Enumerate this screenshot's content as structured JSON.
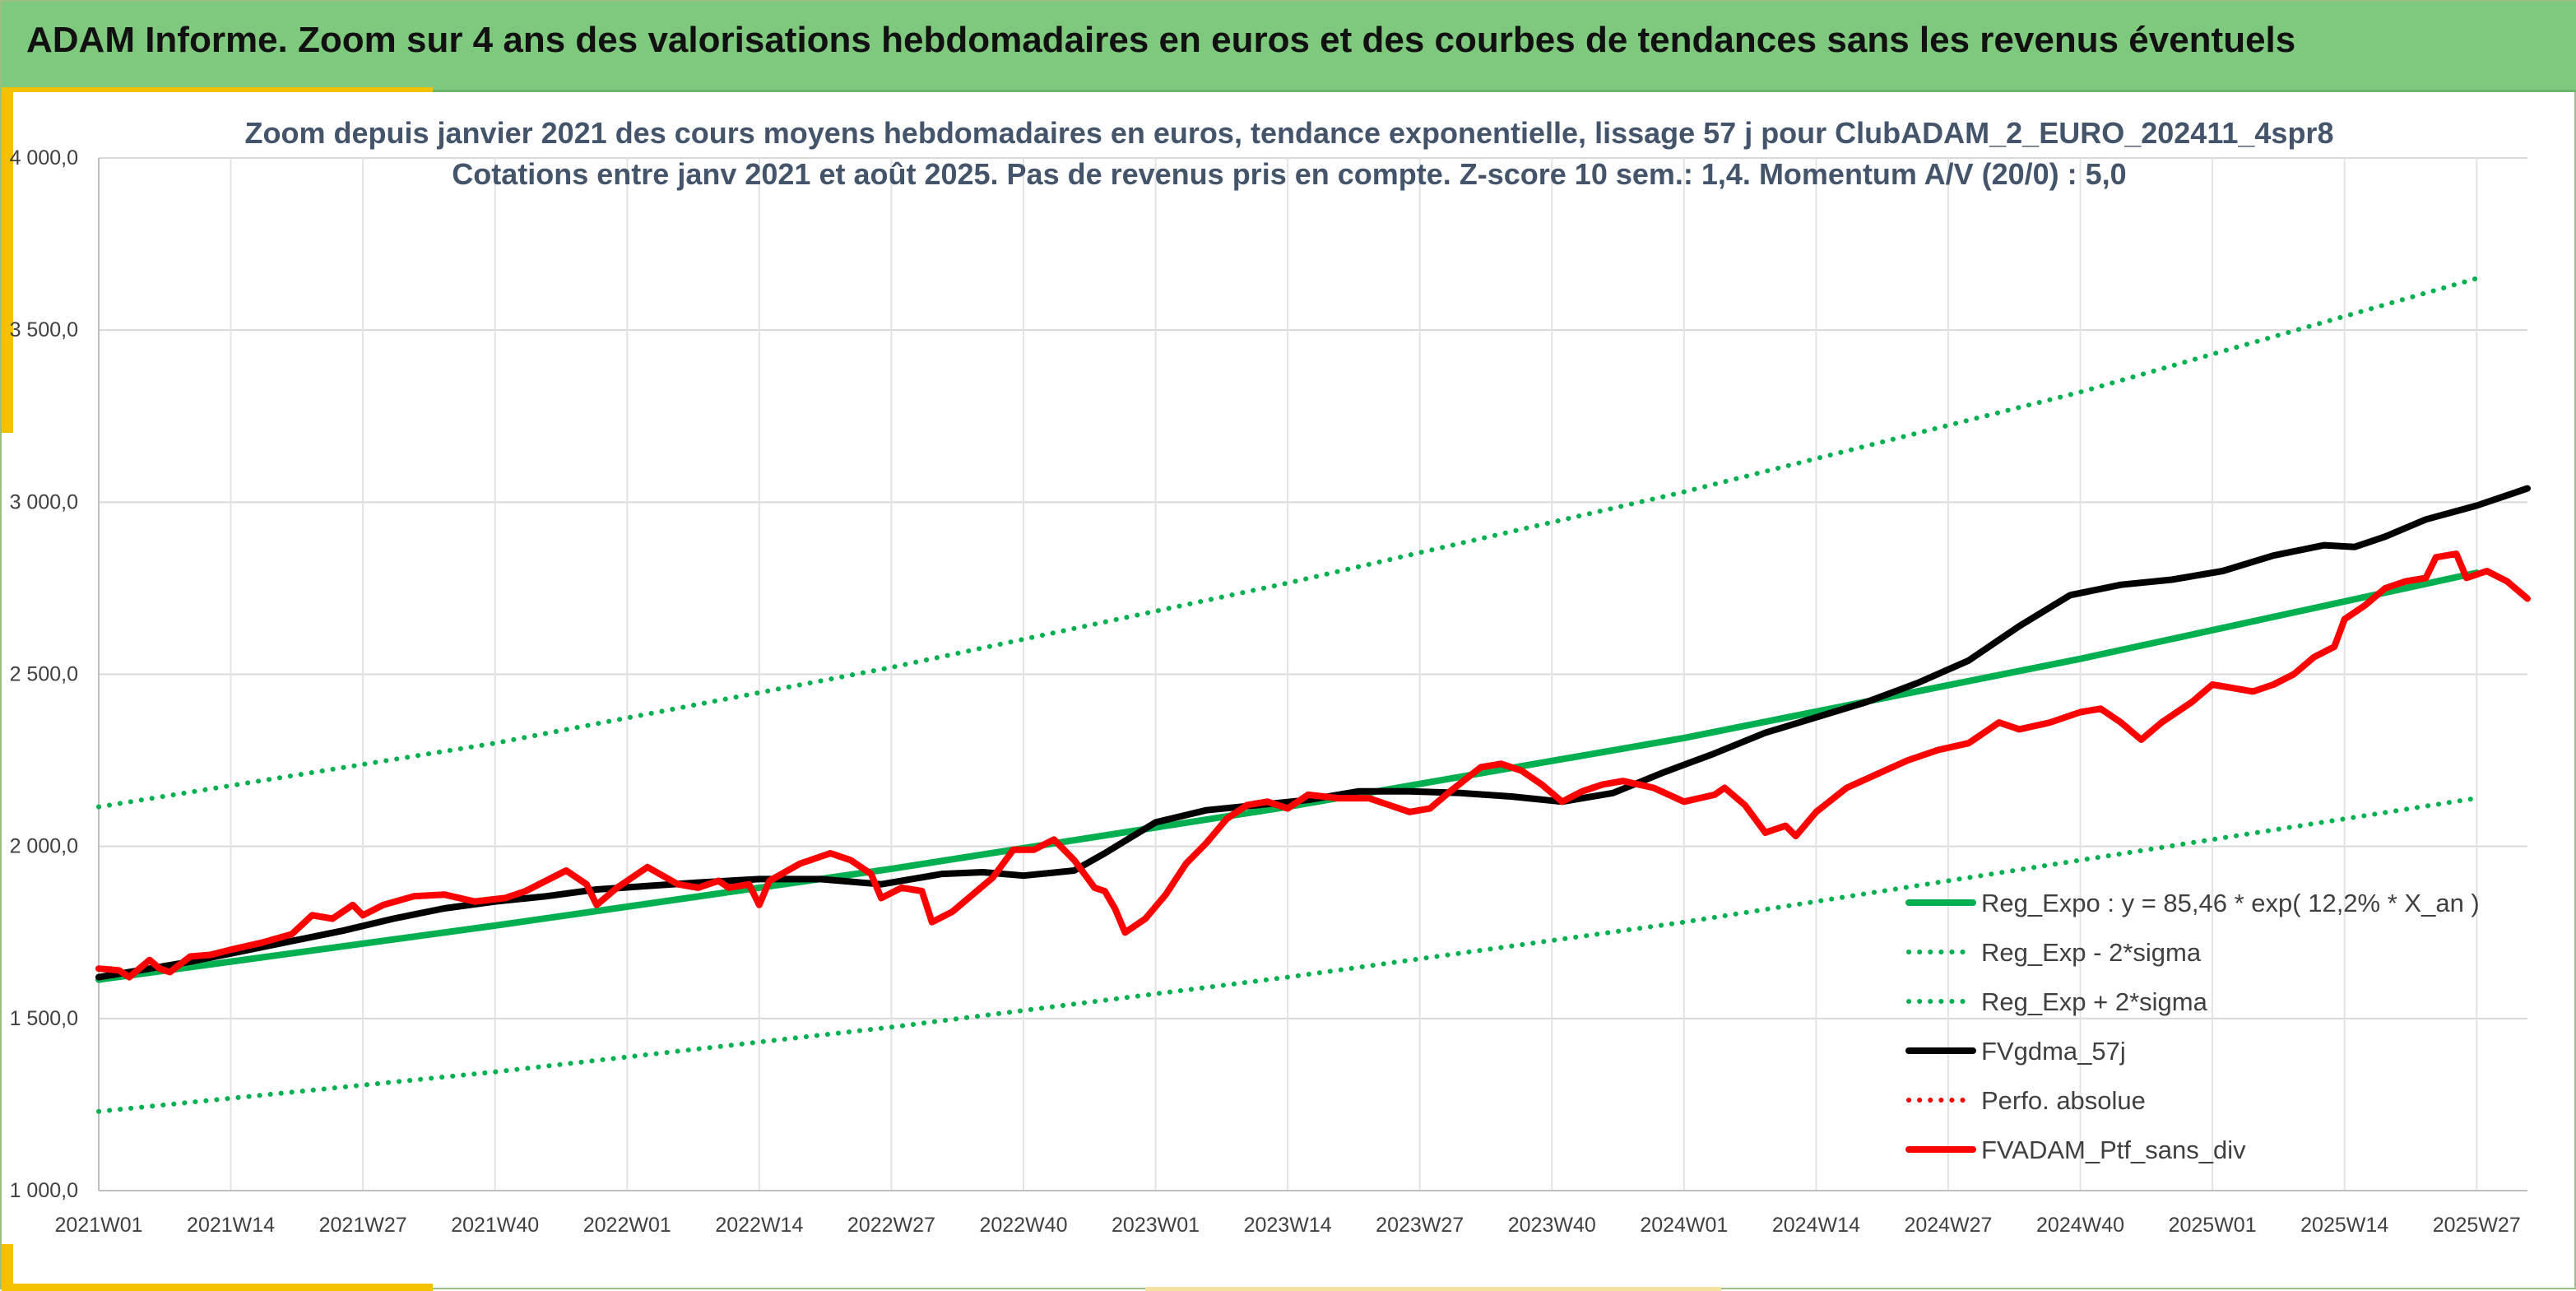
{
  "banner": {
    "title": "ADAM Informe. Zoom sur 4 ans des valorisations hebdomadaires en euros et des courbes de tendances sans les revenus éventuels"
  },
  "colors": {
    "banner_bg": "#7fc97f",
    "accent": "#f2c200",
    "reg_expo": "#00b050",
    "fvgdma": "#000000",
    "fvadam": "#ff0000",
    "title_text": "#44546a"
  },
  "chart_data": {
    "type": "line",
    "title_lines": [
      "Zoom depuis janvier 2021 des cours moyens hebdomadaires en euros, tendance exponentielle, lissage 57 j pour ClubADAM_2_EURO_202411_4spr8",
      "Cotations entre janv 2021 et août 2025. Pas de revenus pris en compte. Z-score 10 sem.: 1,4. Momentum A/V (20/0) : 5,0"
    ],
    "xlabel": "",
    "ylabel": "",
    "ylim": [
      1000,
      4000
    ],
    "x_range_weeks": [
      1,
      240
    ],
    "y_ticks": [
      {
        "value": 1000,
        "label": "1 000,0"
      },
      {
        "value": 1500,
        "label": "1 500,0"
      },
      {
        "value": 2000,
        "label": "2 000,0"
      },
      {
        "value": 2500,
        "label": "2 500,0"
      },
      {
        "value": 3000,
        "label": "3 000,0"
      },
      {
        "value": 3500,
        "label": "3 500,0"
      },
      {
        "value": 4000,
        "label": "4 000,0"
      }
    ],
    "x_ticks": [
      {
        "week": 1,
        "label": "2021W01"
      },
      {
        "week": 14,
        "label": "2021W14"
      },
      {
        "week": 27,
        "label": "2021W27"
      },
      {
        "week": 40,
        "label": "2021W40"
      },
      {
        "week": 53,
        "label": "2022W01"
      },
      {
        "week": 66,
        "label": "2022W14"
      },
      {
        "week": 79,
        "label": "2022W27"
      },
      {
        "week": 92,
        "label": "2022W40"
      },
      {
        "week": 105,
        "label": "2023W01"
      },
      {
        "week": 118,
        "label": "2023W14"
      },
      {
        "week": 131,
        "label": "2023W27"
      },
      {
        "week": 144,
        "label": "2023W40"
      },
      {
        "week": 157,
        "label": "2024W01"
      },
      {
        "week": 170,
        "label": "2024W14"
      },
      {
        "week": 183,
        "label": "2024W27"
      },
      {
        "week": 196,
        "label": "2024W40"
      },
      {
        "week": 209,
        "label": "2025W01"
      },
      {
        "week": 222,
        "label": "2025W14"
      },
      {
        "week": 235,
        "label": "2025W27"
      }
    ],
    "grid": {
      "horizontal": true,
      "vertical": true
    },
    "legend_position": "bottom-right",
    "series": [
      {
        "name": "Reg_Expo : y = 85,46 * exp( 12,2% *  X_an )",
        "color": "#00b050",
        "style": "solid",
        "points": [
          [
            1,
            1613
          ],
          [
            40,
            1770
          ],
          [
            79,
            1935
          ],
          [
            118,
            2115
          ],
          [
            157,
            2315
          ],
          [
            196,
            2545
          ],
          [
            235,
            2795
          ],
          [
            244,
            2840
          ]
        ]
      },
      {
        "name": "Reg_Exp - 2*sigma",
        "color": "#00b050",
        "style": "dotted",
        "points": [
          [
            1,
            1230
          ],
          [
            40,
            1345
          ],
          [
            79,
            1475
          ],
          [
            118,
            1620
          ],
          [
            157,
            1780
          ],
          [
            196,
            1960
          ],
          [
            235,
            2140
          ],
          [
            244,
            2170
          ]
        ]
      },
      {
        "name": "Reg_Exp + 2*sigma",
        "color": "#00b050",
        "style": "dotted",
        "points": [
          [
            1,
            2115
          ],
          [
            40,
            2300
          ],
          [
            79,
            2520
          ],
          [
            118,
            2765
          ],
          [
            157,
            3030
          ],
          [
            196,
            3320
          ],
          [
            235,
            3650
          ],
          [
            244,
            3725
          ]
        ]
      },
      {
        "name": "FVgdma_57j",
        "color": "#000000",
        "style": "solid",
        "points": [
          [
            1,
            1620
          ],
          [
            5,
            1640
          ],
          [
            10,
            1665
          ],
          [
            15,
            1695
          ],
          [
            20,
            1725
          ],
          [
            25,
            1755
          ],
          [
            30,
            1790
          ],
          [
            35,
            1820
          ],
          [
            40,
            1840
          ],
          [
            45,
            1855
          ],
          [
            50,
            1875
          ],
          [
            55,
            1885
          ],
          [
            60,
            1895
          ],
          [
            66,
            1905
          ],
          [
            72,
            1905
          ],
          [
            78,
            1890
          ],
          [
            84,
            1920
          ],
          [
            88,
            1925
          ],
          [
            92,
            1915
          ],
          [
            97,
            1930
          ],
          [
            100,
            1980
          ],
          [
            105,
            2070
          ],
          [
            110,
            2105
          ],
          [
            115,
            2120
          ],
          [
            120,
            2135
          ],
          [
            125,
            2160
          ],
          [
            130,
            2160
          ],
          [
            135,
            2155
          ],
          [
            140,
            2145
          ],
          [
            145,
            2130
          ],
          [
            150,
            2155
          ],
          [
            155,
            2215
          ],
          [
            160,
            2270
          ],
          [
            165,
            2330
          ],
          [
            170,
            2375
          ],
          [
            175,
            2420
          ],
          [
            180,
            2475
          ],
          [
            185,
            2540
          ],
          [
            190,
            2640
          ],
          [
            195,
            2730
          ],
          [
            200,
            2760
          ],
          [
            205,
            2775
          ],
          [
            210,
            2800
          ],
          [
            215,
            2845
          ],
          [
            220,
            2875
          ],
          [
            223,
            2870
          ],
          [
            226,
            2900
          ],
          [
            230,
            2950
          ],
          [
            235,
            2990
          ],
          [
            240,
            3040
          ],
          [
            244,
            3080
          ]
        ]
      },
      {
        "name": "Perfo. absolue",
        "color": "#ff0000",
        "style": "dotted",
        "points": []
      },
      {
        "name": "FVADAM_Ptf_sans_div",
        "color": "#ff0000",
        "style": "solid",
        "points": [
          [
            1,
            1645
          ],
          [
            3,
            1640
          ],
          [
            4,
            1620
          ],
          [
            6,
            1670
          ],
          [
            7,
            1645
          ],
          [
            8,
            1635
          ],
          [
            10,
            1680
          ],
          [
            12,
            1685
          ],
          [
            14,
            1700
          ],
          [
            17,
            1720
          ],
          [
            20,
            1745
          ],
          [
            22,
            1800
          ],
          [
            24,
            1790
          ],
          [
            26,
            1830
          ],
          [
            27,
            1800
          ],
          [
            29,
            1830
          ],
          [
            32,
            1855
          ],
          [
            35,
            1860
          ],
          [
            38,
            1840
          ],
          [
            41,
            1850
          ],
          [
            43,
            1870
          ],
          [
            45,
            1900
          ],
          [
            47,
            1930
          ],
          [
            49,
            1890
          ],
          [
            50,
            1830
          ],
          [
            52,
            1880
          ],
          [
            55,
            1940
          ],
          [
            58,
            1890
          ],
          [
            60,
            1880
          ],
          [
            62,
            1900
          ],
          [
            63,
            1880
          ],
          [
            65,
            1890
          ],
          [
            66,
            1830
          ],
          [
            67,
            1900
          ],
          [
            70,
            1950
          ],
          [
            73,
            1980
          ],
          [
            75,
            1960
          ],
          [
            77,
            1920
          ],
          [
            78,
            1850
          ],
          [
            80,
            1880
          ],
          [
            82,
            1870
          ],
          [
            83,
            1780
          ],
          [
            85,
            1810
          ],
          [
            87,
            1860
          ],
          [
            89,
            1910
          ],
          [
            91,
            1990
          ],
          [
            93,
            1990
          ],
          [
            95,
            2020
          ],
          [
            97,
            1960
          ],
          [
            99,
            1880
          ],
          [
            100,
            1870
          ],
          [
            101,
            1820
          ],
          [
            102,
            1750
          ],
          [
            104,
            1790
          ],
          [
            106,
            1860
          ],
          [
            108,
            1950
          ],
          [
            110,
            2010
          ],
          [
            112,
            2080
          ],
          [
            114,
            2120
          ],
          [
            116,
            2130
          ],
          [
            118,
            2110
          ],
          [
            120,
            2150
          ],
          [
            123,
            2140
          ],
          [
            126,
            2140
          ],
          [
            128,
            2120
          ],
          [
            130,
            2100
          ],
          [
            132,
            2110
          ],
          [
            134,
            2160
          ],
          [
            137,
            2230
          ],
          [
            139,
            2240
          ],
          [
            141,
            2220
          ],
          [
            143,
            2180
          ],
          [
            145,
            2130
          ],
          [
            147,
            2160
          ],
          [
            149,
            2180
          ],
          [
            151,
            2190
          ],
          [
            154,
            2170
          ],
          [
            157,
            2130
          ],
          [
            160,
            2150
          ],
          [
            161,
            2170
          ],
          [
            163,
            2120
          ],
          [
            165,
            2040
          ],
          [
            167,
            2060
          ],
          [
            168,
            2030
          ],
          [
            170,
            2100
          ],
          [
            173,
            2170
          ],
          [
            176,
            2210
          ],
          [
            179,
            2250
          ],
          [
            182,
            2280
          ],
          [
            185,
            2300
          ],
          [
            188,
            2360
          ],
          [
            190,
            2340
          ],
          [
            193,
            2360
          ],
          [
            196,
            2390
          ],
          [
            198,
            2400
          ],
          [
            200,
            2360
          ],
          [
            202,
            2310
          ],
          [
            204,
            2360
          ],
          [
            207,
            2420
          ],
          [
            209,
            2470
          ],
          [
            211,
            2460
          ],
          [
            213,
            2450
          ],
          [
            215,
            2470
          ],
          [
            217,
            2500
          ],
          [
            219,
            2550
          ],
          [
            221,
            2580
          ],
          [
            222,
            2660
          ],
          [
            224,
            2700
          ],
          [
            226,
            2750
          ],
          [
            228,
            2770
          ],
          [
            230,
            2780
          ],
          [
            231,
            2840
          ],
          [
            233,
            2850
          ],
          [
            234,
            2780
          ],
          [
            236,
            2800
          ],
          [
            238,
            2770
          ],
          [
            240,
            2720
          ],
          [
            242,
            2720
          ],
          [
            244,
            2760
          ],
          [
            246,
            2860
          ],
          [
            248,
            2910
          ],
          [
            250,
            2920
          ],
          [
            252,
            2890
          ],
          [
            254,
            2890
          ],
          [
            256,
            2900
          ],
          [
            258,
            2870
          ],
          [
            260,
            2910
          ],
          [
            262,
            2920
          ],
          [
            264,
            2900
          ],
          [
            266,
            2660
          ],
          [
            268,
            2700
          ],
          [
            270,
            2780
          ],
          [
            272,
            2900
          ],
          [
            274,
            2950
          ],
          [
            276,
            3030
          ],
          [
            278,
            3050
          ],
          [
            280,
            3030
          ],
          [
            282,
            3000
          ],
          [
            284,
            3010
          ],
          [
            286,
            3000
          ],
          [
            288,
            3020
          ],
          [
            290,
            3040
          ],
          [
            292,
            3050
          ],
          [
            294,
            3150
          ],
          [
            296,
            3120
          ]
        ]
      }
    ]
  },
  "legend": {
    "items": [
      {
        "label": "Reg_Expo : y = 85,46 * exp( 12,2% *  X_an )",
        "color": "#00b050",
        "style": "solid"
      },
      {
        "label": "Reg_Exp - 2*sigma",
        "color": "#00b050",
        "style": "dotted"
      },
      {
        "label": "Reg_Exp + 2*sigma",
        "color": "#00b050",
        "style": "dotted"
      },
      {
        "label": "FVgdma_57j",
        "color": "#000000",
        "style": "solid"
      },
      {
        "label": "Perfo. absolue",
        "color": "#ff0000",
        "style": "dotted"
      },
      {
        "label": "FVADAM_Ptf_sans_div",
        "color": "#ff0000",
        "style": "solid"
      }
    ]
  }
}
